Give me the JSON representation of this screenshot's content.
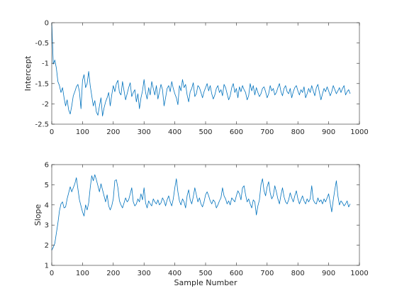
{
  "chart_data": [
    {
      "type": "line",
      "xlabel": "",
      "ylabel": "Intercept",
      "xlim": [
        0,
        1000
      ],
      "ylim": [
        -2.5,
        0
      ],
      "xticks": [
        "0",
        "100",
        "200",
        "300",
        "400",
        "500",
        "600",
        "700",
        "800",
        "900",
        "1000"
      ],
      "yticks": [
        "0",
        "-0.5",
        "-1",
        "-1.5",
        "-2",
        "-2.5"
      ],
      "line_color": "#0072BD",
      "series": [
        {
          "x_start": 0,
          "x_step": 5,
          "values": [
            0,
            -1.02,
            -0.92,
            -1.12,
            -1.45,
            -1.55,
            -1.72,
            -1.6,
            -1.85,
            -2.05,
            -1.9,
            -2.15,
            -2.25,
            -2.05,
            -1.8,
            -1.7,
            -1.58,
            -1.52,
            -1.7,
            -2.12,
            -1.42,
            -1.28,
            -1.6,
            -1.5,
            -1.2,
            -1.55,
            -1.8,
            -2.05,
            -1.92,
            -2.2,
            -2.28,
            -2.05,
            -1.85,
            -2.3,
            -2.1,
            -1.95,
            -1.85,
            -1.72,
            -2.05,
            -1.78,
            -1.55,
            -1.7,
            -1.5,
            -1.42,
            -1.72,
            -1.78,
            -1.45,
            -1.68,
            -1.9,
            -1.75,
            -1.6,
            -1.48,
            -1.82,
            -1.72,
            -1.65,
            -1.95,
            -1.75,
            -2.12,
            -1.85,
            -1.68,
            -1.4,
            -1.72,
            -1.88,
            -1.6,
            -1.78,
            -1.45,
            -1.62,
            -1.78,
            -1.55,
            -1.88,
            -1.7,
            -1.52,
            -1.65,
            -2.05,
            -1.85,
            -1.62,
            -1.55,
            -1.7,
            -1.45,
            -1.62,
            -1.75,
            -1.85,
            -2.02,
            -1.55,
            -1.68,
            -1.4,
            -1.6,
            -1.52,
            -1.78,
            -1.95,
            -1.7,
            -1.62,
            -1.48,
            -1.82,
            -1.75,
            -1.55,
            -1.6,
            -1.72,
            -1.85,
            -1.7,
            -1.6,
            -1.5,
            -1.68,
            -1.55,
            -1.75,
            -1.88,
            -1.78,
            -1.62,
            -1.55,
            -1.72,
            -1.65,
            -1.8,
            -1.52,
            -1.6,
            -1.75,
            -1.9,
            -1.8,
            -1.6,
            -1.5,
            -1.72,
            -1.62,
            -1.85,
            -1.58,
            -1.7,
            -1.55,
            -1.65,
            -1.72,
            -1.9,
            -1.8,
            -1.5,
            -1.68,
            -1.55,
            -1.78,
            -1.6,
            -1.72,
            -1.82,
            -1.75,
            -1.62,
            -1.58,
            -1.7,
            -1.85,
            -1.75,
            -1.55,
            -1.68,
            -1.62,
            -1.78,
            -1.72,
            -1.6,
            -1.5,
            -1.7,
            -1.8,
            -1.62,
            -1.55,
            -1.7,
            -1.75,
            -1.62,
            -1.85,
            -1.7,
            -1.6,
            -1.55,
            -1.68,
            -1.78,
            -1.65,
            -1.72,
            -1.58,
            -1.85,
            -1.75,
            -1.62,
            -1.72,
            -1.55,
            -1.68,
            -1.8,
            -1.6,
            -1.52,
            -1.72,
            -1.9,
            -1.75,
            -1.62,
            -1.7,
            -1.58,
            -1.68,
            -1.8,
            -1.7,
            -1.55,
            -1.65,
            -1.75,
            -1.68,
            -1.6,
            -1.72,
            -1.62,
            -1.55,
            -1.78,
            -1.7,
            -1.65,
            -1.75
          ]
        }
      ]
    },
    {
      "type": "line",
      "xlabel": "Sample Number",
      "ylabel": "Slope",
      "xlim": [
        0,
        1000
      ],
      "ylim": [
        1,
        6
      ],
      "xticks": [
        "0",
        "100",
        "200",
        "300",
        "400",
        "500",
        "600",
        "700",
        "800",
        "900",
        "1000"
      ],
      "yticks": [
        "6",
        "5",
        "4",
        "3",
        "2",
        "1"
      ],
      "line_color": "#0072BD",
      "series": [
        {
          "x_start": 0,
          "x_step": 5,
          "values": [
            1.75,
            1.9,
            2.1,
            2.6,
            3.1,
            3.7,
            4.05,
            4.15,
            3.85,
            3.9,
            4.3,
            4.6,
            4.9,
            4.65,
            4.85,
            5.05,
            5.35,
            4.8,
            4.25,
            3.95,
            3.65,
            3.45,
            4.0,
            3.75,
            4.1,
            4.85,
            5.45,
            5.2,
            5.5,
            5.25,
            4.95,
            4.65,
            5.05,
            4.75,
            4.45,
            4.15,
            4.5,
            3.95,
            3.75,
            3.95,
            4.3,
            5.2,
            5.25,
            4.85,
            4.2,
            4.0,
            3.85,
            4.1,
            4.35,
            4.15,
            4.25,
            4.55,
            4.85,
            4.15,
            3.95,
            4.05,
            4.3,
            4.15,
            4.55,
            4.25,
            4.85,
            4.1,
            3.85,
            4.2,
            4.05,
            3.95,
            4.3,
            4.15,
            4.05,
            4.25,
            4.0,
            4.1,
            4.35,
            4.2,
            3.95,
            4.25,
            4.45,
            4.15,
            3.95,
            4.3,
            4.85,
            5.3,
            4.65,
            4.2,
            4.0,
            4.3,
            4.15,
            3.85,
            4.45,
            4.75,
            4.25,
            4.05,
            4.4,
            4.85,
            4.5,
            4.15,
            4.35,
            4.05,
            3.9,
            4.15,
            4.5,
            4.65,
            4.45,
            4.2,
            4.05,
            4.25,
            4.15,
            3.85,
            4.0,
            4.2,
            4.35,
            4.85,
            4.45,
            4.3,
            4.05,
            4.2,
            4.0,
            4.35,
            4.25,
            4.15,
            4.45,
            4.7,
            4.55,
            4.25,
            4.85,
            4.95,
            4.5,
            4.15,
            4.3,
            4.05,
            3.85,
            4.25,
            4.15,
            3.5,
            3.95,
            4.25,
            5.0,
            5.3,
            4.7,
            4.45,
            4.9,
            5.15,
            4.6,
            4.3,
            4.45,
            4.95,
            4.65,
            4.3,
            4.05,
            4.5,
            4.85,
            4.4,
            4.15,
            4.05,
            4.25,
            4.6,
            4.35,
            4.15,
            4.45,
            4.7,
            4.3,
            4.05,
            4.25,
            4.45,
            4.2,
            4.05,
            4.3,
            4.15,
            4.3,
            4.95,
            4.25,
            4.1,
            4.05,
            4.35,
            4.15,
            4.25,
            4.05,
            4.3,
            4.15,
            4.35,
            4.55,
            4.1,
            3.65,
            4.25,
            4.75,
            5.2,
            4.45,
            4.0,
            4.2,
            4.1,
            3.95,
            4.05,
            4.2,
            3.9,
            4.05
          ]
        }
      ]
    }
  ]
}
